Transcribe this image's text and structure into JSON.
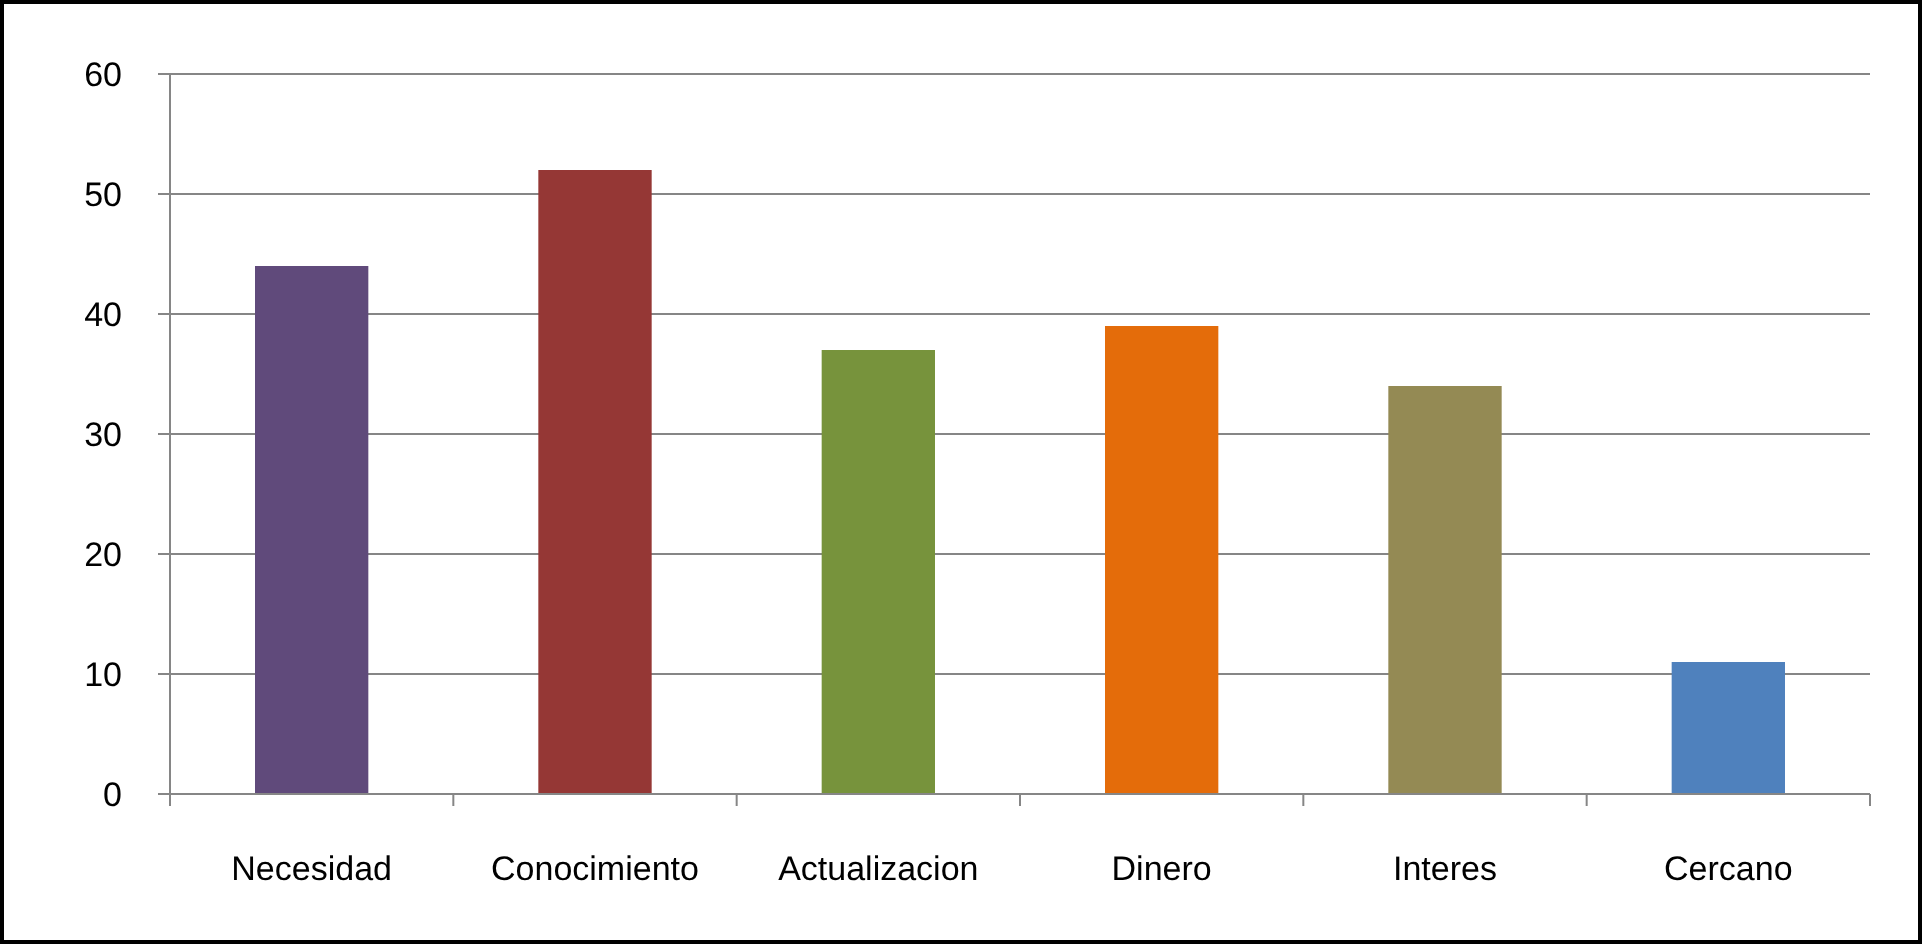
{
  "chart_data": {
    "type": "bar",
    "categories": [
      "Necesidad",
      "Conocimiento",
      "Actualizacion",
      "Dinero",
      "Interes",
      "Cercano"
    ],
    "values": [
      44,
      52,
      37,
      39,
      34,
      11
    ],
    "colors": [
      "#604a7b",
      "#953735",
      "#77933c",
      "#e46c0a",
      "#948a54",
      "#4f81bd"
    ],
    "ylim": [
      0,
      60
    ],
    "yticks": [
      0,
      10,
      20,
      30,
      40,
      50,
      60
    ],
    "grid": "y"
  }
}
